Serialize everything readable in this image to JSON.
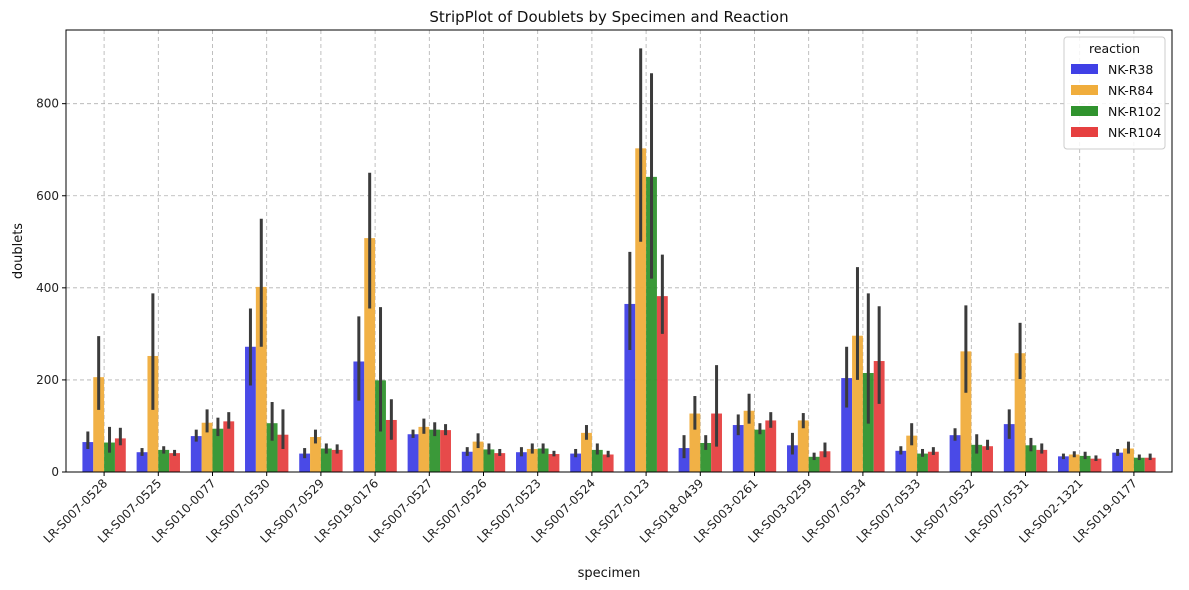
{
  "chart_data": {
    "type": "bar",
    "title": "StripPlot of Doublets by Specimen and Reaction",
    "xlabel": "specimen",
    "ylabel": "doublets",
    "ylim": [
      0,
      960
    ],
    "yticks": [
      0,
      200,
      400,
      600,
      800
    ],
    "grid": true,
    "legend": {
      "title": "reaction",
      "position": "top-right"
    },
    "categories": [
      "LR-S007-0528",
      "LR-S007-0525",
      "LR-S010-0077",
      "LR-S007-0530",
      "LR-S007-0529",
      "LR-S019-0176",
      "LR-S007-0527",
      "LR-S007-0526",
      "LR-S007-0523",
      "LR-S007-0524",
      "LR-S027-0123",
      "LR-S018-0439",
      "LR-S003-0261",
      "LR-S003-0259",
      "LR-S007-0534",
      "LR-S007-0533",
      "LR-S007-0532",
      "LR-S007-0531",
      "LR-S002-1321",
      "LR-S019-0177"
    ],
    "series": [
      {
        "name": "NK-R38",
        "color": "#4040e6",
        "values": [
          65,
          43,
          78,
          272,
          40,
          240,
          82,
          44,
          43,
          40,
          365,
          52,
          102,
          58,
          204,
          46,
          80,
          104,
          34,
          42
        ],
        "err_low": [
          50,
          35,
          66,
          188,
          30,
          155,
          74,
          35,
          34,
          32,
          265,
          30,
          80,
          38,
          140,
          38,
          68,
          72,
          28,
          35
        ],
        "err_high": [
          88,
          52,
          92,
          355,
          52,
          338,
          92,
          54,
          54,
          50,
          478,
          80,
          125,
          85,
          272,
          56,
          95,
          136,
          40,
          50
        ]
      },
      {
        "name": "NK-R84",
        "color": "#f0ad3c",
        "values": [
          206,
          252,
          107,
          402,
          76,
          508,
          98,
          66,
          50,
          85,
          703,
          127,
          133,
          112,
          296,
          79,
          262,
          258,
          38,
          51
        ],
        "err_low": [
          135,
          135,
          86,
          272,
          62,
          355,
          83,
          52,
          40,
          70,
          500,
          92,
          105,
          95,
          200,
          58,
          172,
          202,
          32,
          40
        ],
        "err_high": [
          295,
          388,
          136,
          550,
          92,
          650,
          116,
          84,
          62,
          102,
          920,
          165,
          170,
          128,
          445,
          106,
          362,
          324,
          45,
          66
        ]
      },
      {
        "name": "NK-R102",
        "color": "#30932e",
        "values": [
          64,
          48,
          94,
          106,
          51,
          199,
          92,
          49,
          51,
          48,
          641,
          63,
          92,
          33,
          215,
          40,
          59,
          58,
          35,
          31
        ],
        "err_low": [
          42,
          40,
          78,
          68,
          40,
          88,
          78,
          38,
          40,
          38,
          420,
          48,
          82,
          26,
          105,
          33,
          40,
          45,
          28,
          26
        ],
        "err_high": [
          98,
          56,
          118,
          152,
          62,
          358,
          108,
          62,
          62,
          62,
          866,
          80,
          106,
          42,
          388,
          50,
          82,
          74,
          44,
          38
        ]
      },
      {
        "name": "NK-R104",
        "color": "#e64040",
        "values": [
          73,
          41,
          110,
          81,
          48,
          113,
          91,
          41,
          39,
          38,
          382,
          127,
          112,
          45,
          241,
          44,
          56,
          48,
          29,
          31
        ],
        "err_low": [
          58,
          35,
          94,
          50,
          40,
          70,
          80,
          35,
          34,
          32,
          300,
          55,
          96,
          32,
          148,
          37,
          48,
          40,
          24,
          26
        ],
        "err_high": [
          96,
          48,
          130,
          136,
          60,
          158,
          104,
          50,
          46,
          46,
          472,
          232,
          130,
          64,
          360,
          54,
          70,
          62,
          36,
          40
        ]
      }
    ]
  }
}
